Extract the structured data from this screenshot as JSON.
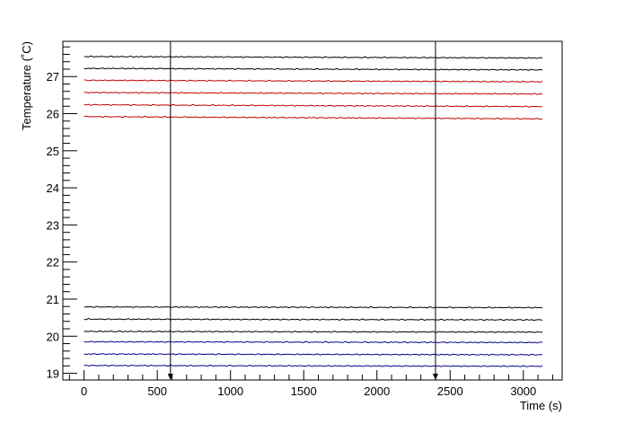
{
  "chart_data": {
    "type": "line",
    "title": "",
    "xlabel": "Time (s)",
    "ylabel": "Temperature (˚C)",
    "xlim": [
      -145,
      3265
    ],
    "ylim": [
      18.82,
      27.95
    ],
    "x_ticks": [
      0,
      500,
      1000,
      1500,
      2000,
      2500,
      3000
    ],
    "y_ticks": [
      19,
      20,
      21,
      22,
      23,
      24,
      25,
      26,
      27
    ],
    "grid": false,
    "legend": "none",
    "x_range": [
      0,
      3130
    ],
    "series": [
      {
        "color": "#000000",
        "x": [
          0,
          3130
        ],
        "y": [
          27.54,
          27.5
        ]
      },
      {
        "color": "#000000",
        "x": [
          0,
          3130
        ],
        "y": [
          27.22,
          27.18
        ]
      },
      {
        "color": "#c00000",
        "x": [
          0,
          3130
        ],
        "y": [
          26.9,
          26.86
        ]
      },
      {
        "color": "#c00000",
        "x": [
          0,
          3130
        ],
        "y": [
          26.57,
          26.53
        ]
      },
      {
        "color": "#c00000",
        "x": [
          0,
          3130
        ],
        "y": [
          26.24,
          26.19
        ]
      },
      {
        "color": "#c00000",
        "x": [
          0,
          3130
        ],
        "y": [
          25.92,
          25.86
        ]
      },
      {
        "color": "#000000",
        "x": [
          0,
          3130
        ],
        "y": [
          20.79,
          20.77
        ]
      },
      {
        "color": "#000000",
        "x": [
          0,
          3130
        ],
        "y": [
          20.46,
          20.44
        ]
      },
      {
        "color": "#000000",
        "x": [
          0,
          3130
        ],
        "y": [
          20.13,
          20.11
        ]
      },
      {
        "color": "#00008b",
        "x": [
          0,
          3130
        ],
        "y": [
          19.85,
          19.83
        ]
      },
      {
        "color": "#00008b",
        "x": [
          0,
          3130
        ],
        "y": [
          19.52,
          19.5
        ]
      },
      {
        "color": "#00008b",
        "x": [
          0,
          3130
        ],
        "y": [
          19.21,
          19.19
        ]
      }
    ],
    "annotations": [
      {
        "type": "arrow",
        "x": 590,
        "y_from": 27.95,
        "y_to": 18.82
      },
      {
        "type": "arrow",
        "x": 2400,
        "y_from": 27.95,
        "y_to": 18.82
      }
    ]
  }
}
